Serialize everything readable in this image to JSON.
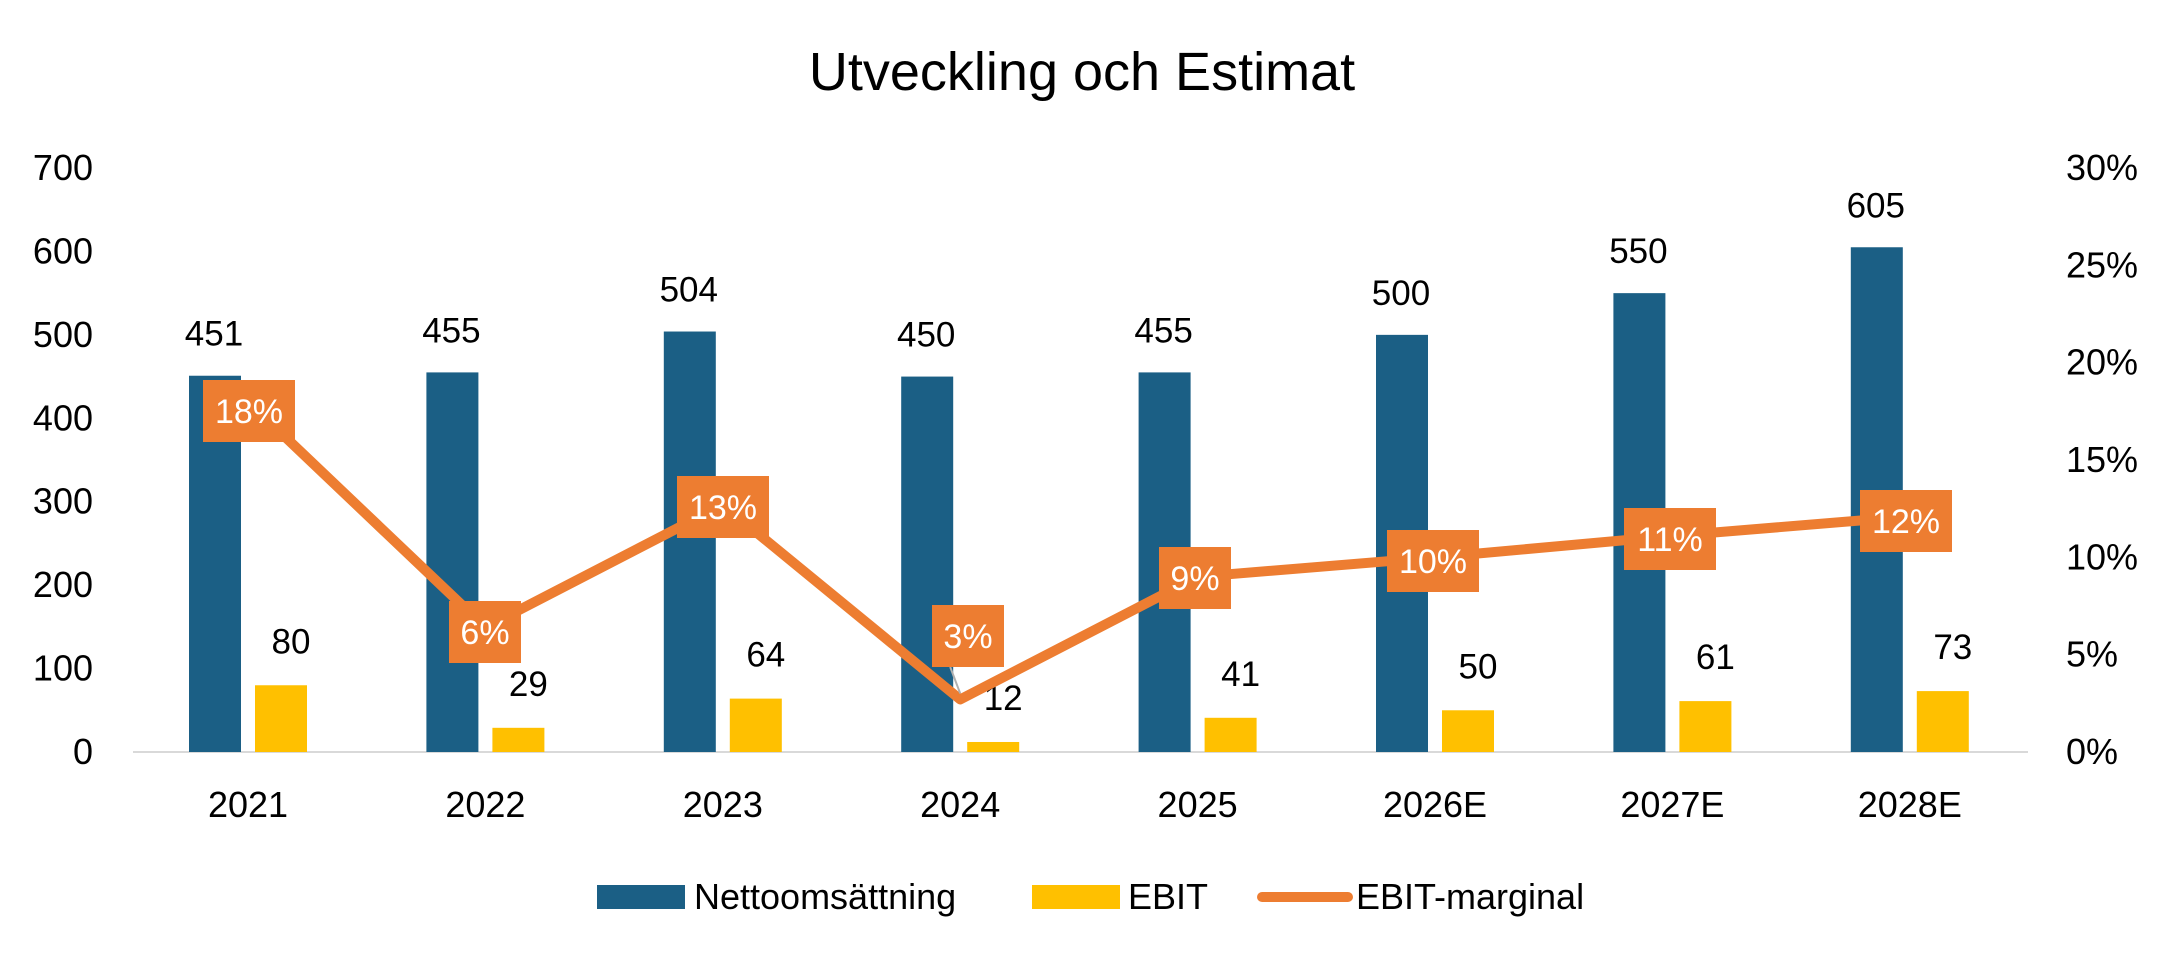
{
  "chart_data": {
    "type": "bar",
    "title": "Utveckling och Estimat",
    "categories": [
      "2021",
      "2022",
      "2023",
      "2024",
      "2025",
      "2026E",
      "2027E",
      "2028E"
    ],
    "series": [
      {
        "name": "Nettoomsättning",
        "kind": "bar",
        "axis": "left",
        "color": "#1B5F85",
        "values": [
          451,
          455,
          504,
          450,
          455,
          500,
          550,
          605
        ]
      },
      {
        "name": "EBIT",
        "kind": "bar",
        "axis": "left",
        "color": "#FFC000",
        "values": [
          80,
          29,
          64,
          12,
          41,
          50,
          61,
          73
        ]
      },
      {
        "name": "EBIT-marginal",
        "kind": "line",
        "axis": "right",
        "color": "#ED7D31",
        "values": [
          18,
          6,
          13,
          3,
          9,
          10,
          11,
          12
        ],
        "plot_values": [
          18,
          6.4,
          12.7,
          2.7,
          9.0,
          10.0,
          11.1,
          12.1
        ],
        "labels": [
          "18%",
          "6%",
          "13%",
          "3%",
          "9%",
          "10%",
          "11%",
          "12%"
        ]
      }
    ],
    "y_left": {
      "min": 0,
      "max": 700,
      "ticks": [
        "0",
        "100",
        "200",
        "300",
        "400",
        "500",
        "600",
        "700"
      ]
    },
    "y_right": {
      "min": 0,
      "max": 30,
      "ticks": [
        "0%",
        "5%",
        "10%",
        "15%",
        "20%",
        "25%",
        "30%"
      ]
    },
    "grid": false,
    "legend_position": "bottom"
  }
}
